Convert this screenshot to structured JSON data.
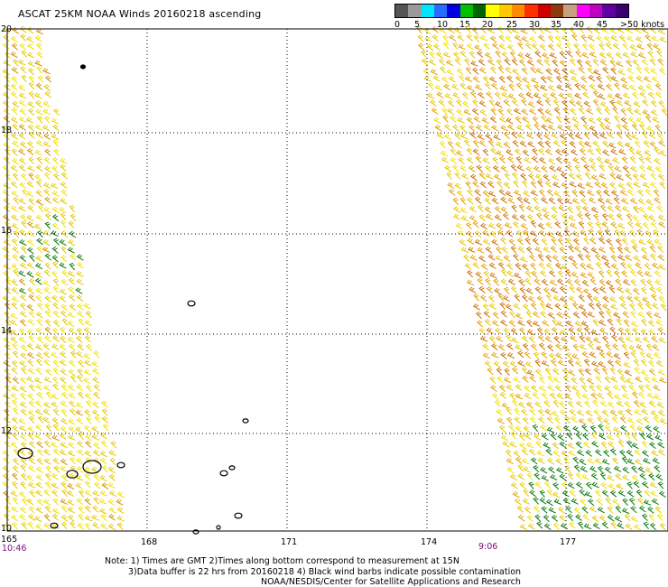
{
  "title": "ASCAT 25KM NOAA Winds 20160218 ascending",
  "legend": {
    "colors": [
      "#555555",
      "#9a9a9a",
      "#00e5ff",
      "#2a6bff",
      "#0000e0",
      "#00c000",
      "#006400",
      "#ffff00",
      "#ffc800",
      "#ff8c00",
      "#ff3000",
      "#d00000",
      "#8b3a10",
      "#c8a080",
      "#ff00ff",
      "#c000c0",
      "#6000a0",
      "#3a0070"
    ],
    "labels": [
      "0",
      "5",
      "10",
      "15",
      "20",
      "25",
      "30",
      "35",
      "40",
      "45",
      ">50 knots"
    ]
  },
  "axes": {
    "lat_labels": [
      "20",
      "18",
      "16",
      "14",
      "12",
      "10"
    ],
    "lon_labels": [
      "165",
      "168",
      "171",
      "174",
      "177"
    ]
  },
  "times": {
    "left": "10:46",
    "right": "9:06"
  },
  "notes": {
    "line1": "Note: 1) Times are GMT 2)Times along bottom correspond to measurement at 15N",
    "line2": "3)Data buffer is 22 hrs from 20160218 4) Black wind barbs indicate possible contamination",
    "line3": "NOAA/NESDIS/Center for Satellite Applications and Research"
  }
}
